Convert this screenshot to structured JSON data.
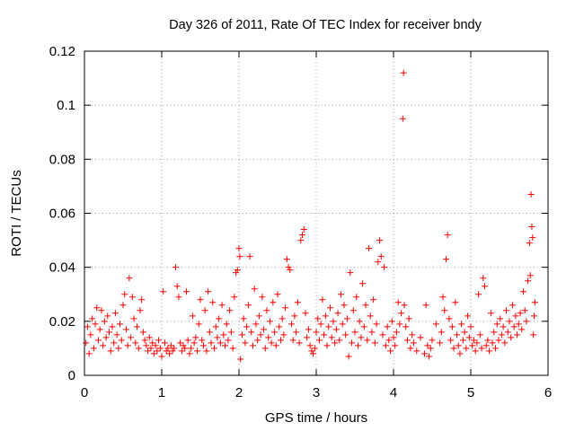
{
  "chart_data": {
    "type": "scatter",
    "title": "Day 326 of 2011, Rate Of TEC Index for receiver bndy",
    "xlabel": "GPS time / hours",
    "ylabel": "ROTI / TECUs",
    "xlim": [
      0,
      6
    ],
    "ylim": [
      0,
      0.12
    ],
    "x_ticks": [
      0,
      1,
      2,
      3,
      4,
      5,
      6
    ],
    "x_tick_labels": [
      "0",
      "1",
      "2",
      "3",
      "4",
      "5",
      "6"
    ],
    "y_ticks": [
      0,
      0.02,
      0.04,
      0.06,
      0.08,
      0.1,
      0.12
    ],
    "y_tick_labels": [
      "0",
      "0.02",
      "0.04",
      "0.06",
      "0.08",
      "0.1",
      "0.12"
    ],
    "grid": true,
    "legend": "none",
    "marker": "plus",
    "series": [
      {
        "color": "#ff0000",
        "points": [
          [
            0.02,
            0.012
          ],
          [
            0.04,
            0.018
          ],
          [
            0.06,
            0.008
          ],
          [
            0.08,
            0.015
          ],
          [
            0.1,
            0.021
          ],
          [
            0.12,
            0.01
          ],
          [
            0.14,
            0.019
          ],
          [
            0.16,
            0.025
          ],
          [
            0.18,
            0.013
          ],
          [
            0.2,
            0.017
          ],
          [
            0.22,
            0.024
          ],
          [
            0.24,
            0.011
          ],
          [
            0.26,
            0.02
          ],
          [
            0.28,
            0.014
          ],
          [
            0.3,
            0.022
          ],
          [
            0.32,
            0.016
          ],
          [
            0.34,
            0.009
          ],
          [
            0.36,
            0.018
          ],
          [
            0.38,
            0.012
          ],
          [
            0.4,
            0.023
          ],
          [
            0.42,
            0.015
          ],
          [
            0.44,
            0.01
          ],
          [
            0.46,
            0.019
          ],
          [
            0.48,
            0.013
          ],
          [
            0.5,
            0.026
          ],
          [
            0.52,
            0.03
          ],
          [
            0.54,
            0.017
          ],
          [
            0.56,
            0.011
          ],
          [
            0.58,
            0.036
          ],
          [
            0.6,
            0.014
          ],
          [
            0.62,
            0.029
          ],
          [
            0.64,
            0.021
          ],
          [
            0.66,
            0.012
          ],
          [
            0.68,
            0.018
          ],
          [
            0.7,
            0.01
          ],
          [
            0.72,
            0.024
          ],
          [
            0.74,
            0.028
          ],
          [
            0.76,
            0.016
          ],
          [
            0.78,
            0.013
          ],
          [
            0.8,
            0.011
          ],
          [
            0.82,
            0.009
          ],
          [
            0.84,
            0.014
          ],
          [
            0.86,
            0.01
          ],
          [
            0.88,
            0.012
          ],
          [
            0.9,
            0.008
          ],
          [
            0.92,
            0.011
          ],
          [
            0.94,
            0.009
          ],
          [
            0.96,
            0.013
          ],
          [
            0.98,
            0.01
          ],
          [
            1.0,
            0.007
          ],
          [
            1.02,
            0.031
          ],
          [
            1.04,
            0.012
          ],
          [
            1.06,
            0.009
          ],
          [
            1.08,
            0.01
          ],
          [
            1.1,
            0.008
          ],
          [
            1.12,
            0.011
          ],
          [
            1.14,
            0.009
          ],
          [
            1.16,
            0.01
          ],
          [
            1.18,
            0.04
          ],
          [
            1.2,
            0.033
          ],
          [
            1.22,
            0.029
          ],
          [
            1.24,
            0.012
          ],
          [
            1.26,
            0.009
          ],
          [
            1.28,
            0.011
          ],
          [
            1.3,
            0.01
          ],
          [
            1.32,
            0.031
          ],
          [
            1.34,
            0.013
          ],
          [
            1.36,
            0.008
          ],
          [
            1.38,
            0.01
          ],
          [
            1.4,
            0.022
          ],
          [
            1.42,
            0.012
          ],
          [
            1.44,
            0.014
          ],
          [
            1.46,
            0.009
          ],
          [
            1.48,
            0.019
          ],
          [
            1.5,
            0.028
          ],
          [
            1.52,
            0.013
          ],
          [
            1.54,
            0.011
          ],
          [
            1.56,
            0.024
          ],
          [
            1.58,
            0.009
          ],
          [
            1.6,
            0.031
          ],
          [
            1.62,
            0.016
          ],
          [
            1.64,
            0.012
          ],
          [
            1.66,
            0.027
          ],
          [
            1.68,
            0.01
          ],
          [
            1.7,
            0.018
          ],
          [
            1.72,
            0.014
          ],
          [
            1.74,
            0.021
          ],
          [
            1.76,
            0.012
          ],
          [
            1.78,
            0.026
          ],
          [
            1.8,
            0.015
          ],
          [
            1.82,
            0.011
          ],
          [
            1.84,
            0.019
          ],
          [
            1.86,
            0.013
          ],
          [
            1.88,
            0.024
          ],
          [
            1.9,
            0.016
          ],
          [
            1.92,
            0.01
          ],
          [
            1.94,
            0.029
          ],
          [
            1.96,
            0.038
          ],
          [
            1.98,
            0.039
          ],
          [
            2.0,
            0.047
          ],
          [
            2.01,
            0.044
          ],
          [
            2.02,
            0.006
          ],
          [
            2.04,
            0.015
          ],
          [
            2.06,
            0.021
          ],
          [
            2.08,
            0.012
          ],
          [
            2.1,
            0.018
          ],
          [
            2.12,
            0.026
          ],
          [
            2.14,
            0.044
          ],
          [
            2.16,
            0.016
          ],
          [
            2.18,
            0.011
          ],
          [
            2.2,
            0.032
          ],
          [
            2.22,
            0.019
          ],
          [
            2.24,
            0.013
          ],
          [
            2.26,
            0.022
          ],
          [
            2.28,
            0.015
          ],
          [
            2.3,
            0.029
          ],
          [
            2.32,
            0.017
          ],
          [
            2.34,
            0.01
          ],
          [
            2.36,
            0.024
          ],
          [
            2.38,
            0.014
          ],
          [
            2.4,
            0.02
          ],
          [
            2.42,
            0.012
          ],
          [
            2.44,
            0.027
          ],
          [
            2.46,
            0.016
          ],
          [
            2.48,
            0.011
          ],
          [
            2.5,
            0.03
          ],
          [
            2.52,
            0.018
          ],
          [
            2.54,
            0.013
          ],
          [
            2.56,
            0.021
          ],
          [
            2.58,
            0.015
          ],
          [
            2.6,
            0.025
          ],
          [
            2.62,
            0.043
          ],
          [
            2.64,
            0.04
          ],
          [
            2.66,
            0.039
          ],
          [
            2.68,
            0.019
          ],
          [
            2.7,
            0.013
          ],
          [
            2.72,
            0.022
          ],
          [
            2.74,
            0.016
          ],
          [
            2.76,
            0.027
          ],
          [
            2.78,
            0.012
          ],
          [
            2.8,
            0.05
          ],
          [
            2.82,
            0.052
          ],
          [
            2.84,
            0.054
          ],
          [
            2.86,
            0.023
          ],
          [
            2.88,
            0.014
          ],
          [
            2.9,
            0.017
          ],
          [
            2.92,
            0.011
          ],
          [
            2.94,
            0.009
          ],
          [
            2.96,
            0.008
          ],
          [
            2.98,
            0.01
          ],
          [
            3.0,
            0.016
          ],
          [
            3.02,
            0.021
          ],
          [
            3.04,
            0.013
          ],
          [
            3.06,
            0.019
          ],
          [
            3.08,
            0.028
          ],
          [
            3.1,
            0.015
          ],
          [
            3.12,
            0.022
          ],
          [
            3.14,
            0.011
          ],
          [
            3.16,
            0.018
          ],
          [
            3.18,
            0.025
          ],
          [
            3.2,
            0.014
          ],
          [
            3.22,
            0.02
          ],
          [
            3.24,
            0.012
          ],
          [
            3.26,
            0.017
          ],
          [
            3.28,
            0.023
          ],
          [
            3.3,
            0.013
          ],
          [
            3.32,
            0.03
          ],
          [
            3.34,
            0.019
          ],
          [
            3.36,
            0.026
          ],
          [
            3.38,
            0.015
          ],
          [
            3.4,
            0.021
          ],
          [
            3.42,
            0.007
          ],
          [
            3.44,
            0.038
          ],
          [
            3.46,
            0.012
          ],
          [
            3.48,
            0.024
          ],
          [
            3.5,
            0.016
          ],
          [
            3.52,
            0.029
          ],
          [
            3.54,
            0.011
          ],
          [
            3.56,
            0.02
          ],
          [
            3.58,
            0.014
          ],
          [
            3.6,
            0.034
          ],
          [
            3.62,
            0.018
          ],
          [
            3.64,
            0.026
          ],
          [
            3.66,
            0.013
          ],
          [
            3.68,
            0.047
          ],
          [
            3.7,
            0.022
          ],
          [
            3.72,
            0.016
          ],
          [
            3.74,
            0.028
          ],
          [
            3.76,
            0.012
          ],
          [
            3.78,
            0.019
          ],
          [
            3.8,
            0.042
          ],
          [
            3.82,
            0.05
          ],
          [
            3.84,
            0.044
          ],
          [
            3.86,
            0.015
          ],
          [
            3.88,
            0.04
          ],
          [
            3.9,
            0.011
          ],
          [
            3.92,
            0.018
          ],
          [
            3.94,
            0.013
          ],
          [
            3.96,
            0.009
          ],
          [
            3.98,
            0.02
          ],
          [
            4.0,
            0.014
          ],
          [
            4.02,
            0.011
          ],
          [
            4.04,
            0.016
          ],
          [
            4.06,
            0.027
          ],
          [
            4.08,
            0.019
          ],
          [
            4.1,
            0.023
          ],
          [
            4.12,
            0.095
          ],
          [
            4.13,
            0.112
          ],
          [
            4.14,
            0.026
          ],
          [
            4.16,
            0.018
          ],
          [
            4.18,
            0.013
          ],
          [
            4.2,
            0.021
          ],
          [
            4.22,
            0.01
          ],
          [
            4.24,
            0.015
          ],
          [
            4.26,
            0.012
          ],
          [
            4.3,
            0.009
          ],
          [
            4.35,
            0.014
          ],
          [
            4.4,
            0.008
          ],
          [
            4.42,
            0.026
          ],
          [
            4.44,
            0.011
          ],
          [
            4.46,
            0.007
          ],
          [
            4.48,
            0.01
          ],
          [
            4.5,
            0.013
          ],
          [
            4.55,
            0.019
          ],
          [
            4.6,
            0.012
          ],
          [
            4.62,
            0.016
          ],
          [
            4.64,
            0.029
          ],
          [
            4.66,
            0.024
          ],
          [
            4.68,
            0.043
          ],
          [
            4.7,
            0.052
          ],
          [
            4.72,
            0.021
          ],
          [
            4.74,
            0.013
          ],
          [
            4.76,
            0.018
          ],
          [
            4.78,
            0.01
          ],
          [
            4.8,
            0.027
          ],
          [
            4.82,
            0.015
          ],
          [
            4.84,
            0.011
          ],
          [
            4.86,
            0.008
          ],
          [
            4.88,
            0.019
          ],
          [
            4.9,
            0.013
          ],
          [
            4.92,
            0.016
          ],
          [
            4.94,
            0.01
          ],
          [
            4.96,
            0.022
          ],
          [
            4.98,
            0.014
          ],
          [
            5.0,
            0.018
          ],
          [
            5.02,
            0.011
          ],
          [
            5.04,
            0.013
          ],
          [
            5.06,
            0.009
          ],
          [
            5.08,
            0.012
          ],
          [
            5.1,
            0.03
          ],
          [
            5.12,
            0.015
          ],
          [
            5.14,
            0.01
          ],
          [
            5.16,
            0.036
          ],
          [
            5.18,
            0.033
          ],
          [
            5.2,
            0.011
          ],
          [
            5.22,
            0.013
          ],
          [
            5.24,
            0.009
          ],
          [
            5.26,
            0.023
          ],
          [
            5.28,
            0.012
          ],
          [
            5.3,
            0.016
          ],
          [
            5.32,
            0.01
          ],
          [
            5.34,
            0.019
          ],
          [
            5.36,
            0.013
          ],
          [
            5.38,
            0.021
          ],
          [
            5.4,
            0.015
          ],
          [
            5.42,
            0.018
          ],
          [
            5.44,
            0.012
          ],
          [
            5.46,
            0.024
          ],
          [
            5.48,
            0.016
          ],
          [
            5.5,
            0.02
          ],
          [
            5.52,
            0.014
          ],
          [
            5.54,
            0.026
          ],
          [
            5.56,
            0.018
          ],
          [
            5.58,
            0.022
          ],
          [
            5.6,
            0.015
          ],
          [
            5.62,
            0.019
          ],
          [
            5.64,
            0.023
          ],
          [
            5.66,
            0.017
          ],
          [
            5.68,
            0.031
          ],
          [
            5.7,
            0.024
          ],
          [
            5.72,
            0.02
          ],
          [
            5.74,
            0.035
          ],
          [
            5.76,
            0.049
          ],
          [
            5.77,
            0.037
          ],
          [
            5.78,
            0.067
          ],
          [
            5.79,
            0.055
          ],
          [
            5.8,
            0.051
          ],
          [
            5.81,
            0.015
          ],
          [
            5.82,
            0.022
          ],
          [
            5.83,
            0.027
          ]
        ]
      }
    ]
  }
}
